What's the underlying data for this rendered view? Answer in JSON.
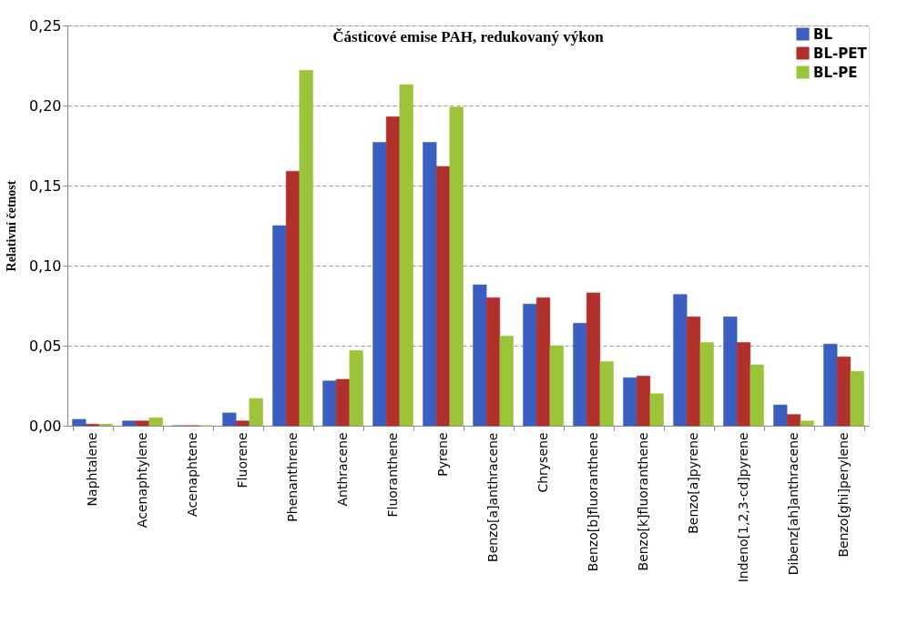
{
  "chart_data": {
    "type": "bar",
    "title": "Částicové emise PAH, redukovaný výkon",
    "ylabel": "Relativní četnost",
    "categories": [
      "Naphtalene",
      "Acenaphtylene",
      "Acenaphtene",
      "Fluorene",
      "Phenanthrene",
      "Anthracene",
      "Fluoranthene",
      "Pyrene",
      "Benzo[a]anthracene",
      "Chrysene",
      "Benzo[b]fluoranthene",
      "Benzo[k]fluoranthene",
      "Benzo[a]pyrene",
      "Indeno[1,2,3-cd]pyrene",
      "Dibenz[ah]anthracene",
      "Benzo[ghi]perylene"
    ],
    "series": [
      {
        "name": "BL",
        "color": "#3a5fc0",
        "values": [
          0.004,
          0.003,
          0,
          0.008,
          0.125,
          0.028,
          0.177,
          0.177,
          0.088,
          0.076,
          0.064,
          0.03,
          0.082,
          0.068,
          0.013,
          0.051
        ]
      },
      {
        "name": "BL-PET",
        "color": "#b0302c",
        "values": [
          0.001,
          0.003,
          0,
          0.003,
          0.159,
          0.029,
          0.193,
          0.162,
          0.08,
          0.08,
          0.083,
          0.031,
          0.068,
          0.052,
          0.007,
          0.043
        ]
      },
      {
        "name": "BL-PE",
        "color": "#9cc43a",
        "values": [
          0.001,
          0.005,
          0,
          0.017,
          0.222,
          0.047,
          0.213,
          0.199,
          0.056,
          0.05,
          0.04,
          0.02,
          0.052,
          0.038,
          0.003,
          0.034
        ]
      }
    ],
    "ylim": [
      0,
      0.25
    ],
    "yticks": [
      {
        "value": 0,
        "label": "0,00"
      },
      {
        "value": 0.05,
        "label": "0,05"
      },
      {
        "value": 0.1,
        "label": "0,10"
      },
      {
        "value": 0.15,
        "label": "0,15"
      },
      {
        "value": 0.2,
        "label": "0,20"
      },
      {
        "value": 0.25,
        "label": "0,25"
      }
    ],
    "grid": "y",
    "legend": "top right"
  }
}
